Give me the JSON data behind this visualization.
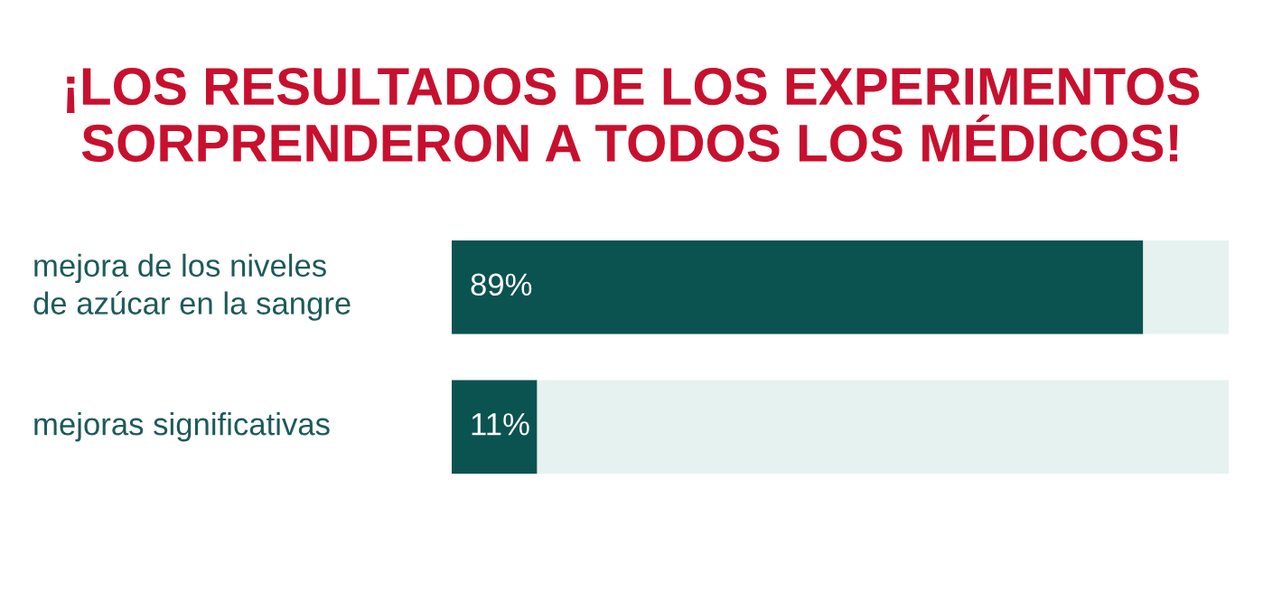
{
  "chart_data": {
    "type": "bar",
    "orientation": "horizontal",
    "stacked": true,
    "title": "¡LOS RESULTADOS DE LOS EXPERIMENTOS\nSORPRENDERON A TODOS LOS MÉDICOS!",
    "categories": [
      "mejora de los niveles\nde azúcar en la sangre",
      "mejoras significativas"
    ],
    "series": [
      {
        "color": "#0b5351",
        "values": [
          89,
          11
        ],
        "value_labels": [
          "89%",
          "11%"
        ]
      },
      {
        "color": "#e6f2ef",
        "values": [
          11,
          89
        ]
      }
    ],
    "xlim": [
      0,
      100
    ],
    "tick_labels": false
  }
}
